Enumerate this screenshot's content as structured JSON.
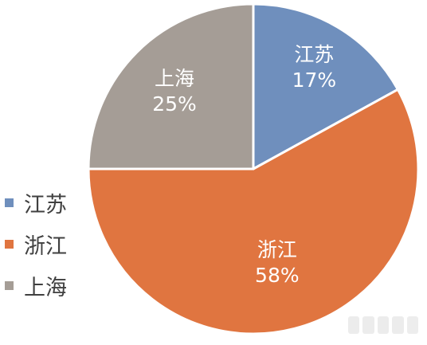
{
  "chart_data": {
    "type": "pie",
    "slices": [
      {
        "label": "江苏",
        "value": 17,
        "value_label": "17%",
        "color": "#6f8fbd"
      },
      {
        "label": "浙江",
        "value": 58,
        "value_label": "58%",
        "color": "#e07540"
      },
      {
        "label": "上海",
        "value": 25,
        "value_label": "25%",
        "color": "#a59d96"
      }
    ],
    "legend": {
      "placement": "left",
      "items": [
        {
          "label": "江苏",
          "color": "#6f8fbd"
        },
        {
          "label": "浙江",
          "color": "#e07540"
        },
        {
          "label": "上海",
          "color": "#a59d96"
        }
      ]
    }
  }
}
